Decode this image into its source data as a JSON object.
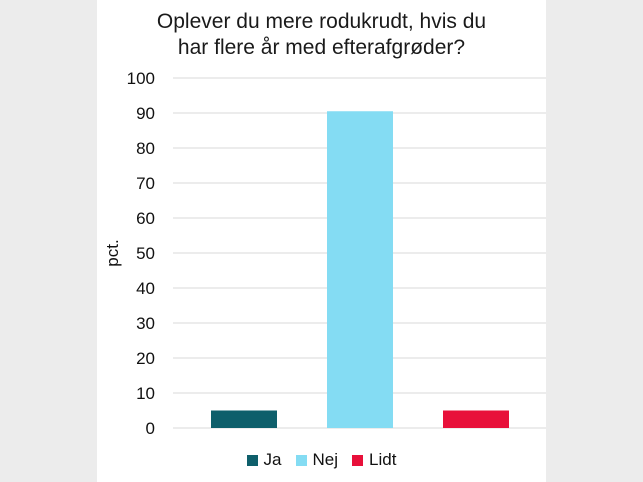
{
  "chart_data": {
    "type": "bar",
    "title_lines": [
      "Oplever du mere rodukrudt, hvis du",
      "har flere år med efterafgrøder?"
    ],
    "ylabel": "pct.",
    "xlabel": "",
    "ylim": [
      0,
      100
    ],
    "yticks": [
      0,
      10,
      20,
      30,
      40,
      50,
      60,
      70,
      80,
      90,
      100
    ],
    "grid": true,
    "legend_position": "bottom",
    "categories": [
      "Ja",
      "Nej",
      "Lidt"
    ],
    "values": [
      5,
      90.5,
      5
    ],
    "colors": [
      "#0e5f6b",
      "#84dcf3",
      "#e8103a"
    ]
  }
}
